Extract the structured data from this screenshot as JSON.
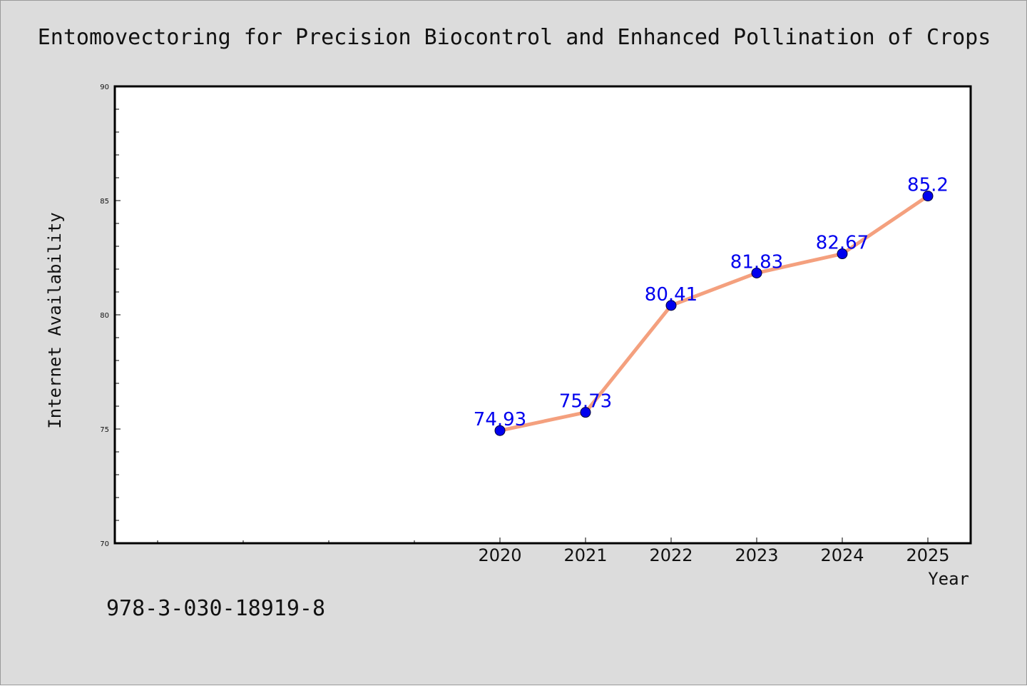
{
  "chart_data": {
    "type": "line",
    "title": "Entomovectoring for Precision Biocontrol and Enhanced Pollination of Crops",
    "xlabel": "Year",
    "ylabel": "Internet Availability",
    "categories": [
      "2020",
      "2021",
      "2022",
      "2023",
      "2024",
      "2025"
    ],
    "series": [
      {
        "values": [
          74.93,
          75.73,
          80.41,
          81.83,
          82.67,
          85.2
        ]
      }
    ],
    "data_labels": [
      "74.93",
      "75.73",
      "80.41",
      "81.83",
      "82.67",
      "85.2"
    ],
    "ylim": [
      70,
      90
    ],
    "y_ticks": [
      70,
      75,
      80,
      85,
      90
    ],
    "grid": false,
    "legend": "none",
    "colors": {
      "line": "#f4a07e",
      "marker": "#0000ee",
      "label": "#0000ee",
      "background": "#dcdcdc",
      "plot_background": "#ffffff"
    }
  },
  "footer": {
    "note": "978-3-030-18919-8"
  }
}
